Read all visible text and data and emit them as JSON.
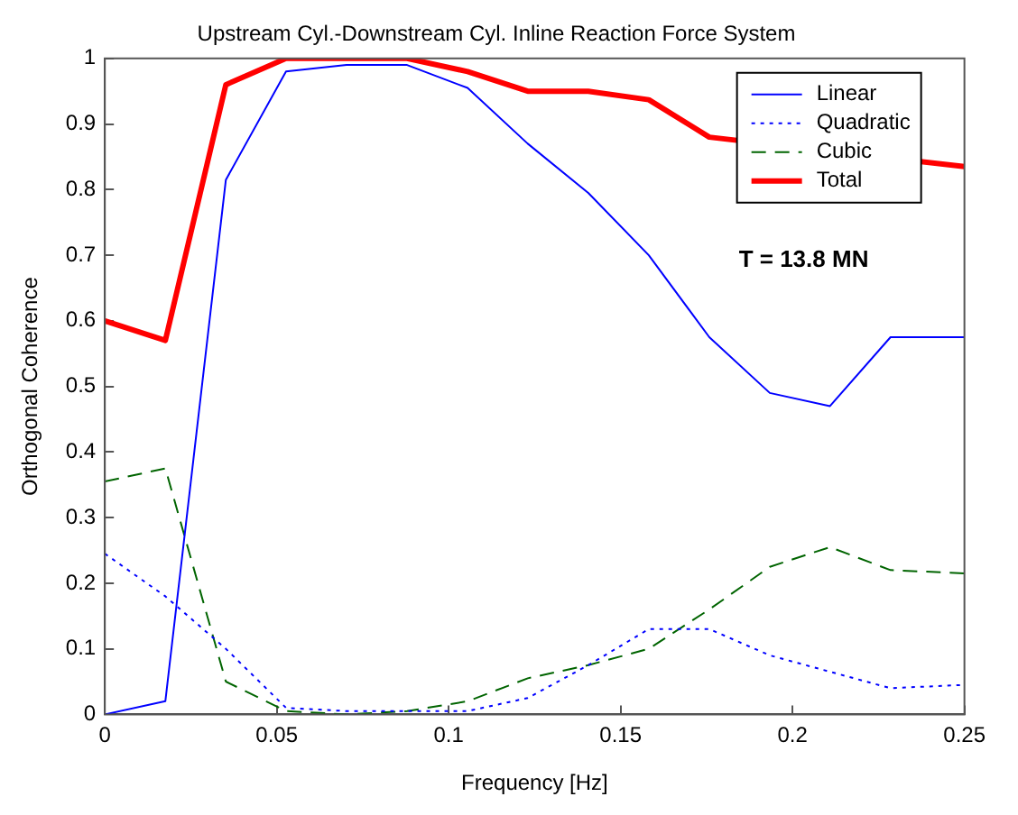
{
  "chart_data": {
    "type": "line",
    "title": "Upstream Cyl.-Downstream Cyl. Inline Reaction Force System",
    "xlabel": "Frequency [Hz]",
    "ylabel": "Orthogonal Coherence",
    "x": [
      0,
      0.0176,
      0.0352,
      0.0527,
      0.0703,
      0.0879,
      0.1055,
      0.123,
      0.1406,
      0.1582,
      0.1758,
      0.1934,
      0.2109,
      0.2285,
      0.25
    ],
    "series": [
      {
        "name": "Linear",
        "color": "#0000ff",
        "line_style": "solid",
        "values": [
          0,
          0.02,
          0.815,
          0.98,
          0.99,
          0.99,
          0.955,
          0.87,
          0.795,
          0.7,
          0.575,
          0.49,
          0.47,
          0.575,
          0.575
        ]
      },
      {
        "name": "Quadratic",
        "color": "#0000ff",
        "line_style": "dotted",
        "values": [
          0.245,
          0.18,
          0.1,
          0.01,
          0.005,
          0.005,
          0.005,
          0.025,
          0.075,
          0.13,
          0.13,
          0.09,
          0.065,
          0.04,
          0.045
        ]
      },
      {
        "name": "Cubic",
        "color": "#006400",
        "line_style": "dashed",
        "values": [
          0.355,
          0.375,
          0.05,
          0.005,
          0,
          0.005,
          0.02,
          0.055,
          0.075,
          0.1,
          0.16,
          0.225,
          0.255,
          0.22,
          0.215
        ]
      },
      {
        "name": "Total",
        "color": "#ff0000",
        "line_style": "solid",
        "values": [
          0.6,
          0.57,
          0.96,
          1,
          1,
          1,
          0.98,
          0.95,
          0.95,
          0.937,
          0.88,
          null,
          null,
          null,
          0.835
        ]
      }
    ],
    "xlim": [
      0,
      0.25
    ],
    "xticks": [
      0,
      0.05,
      0.1,
      0.15,
      0.2,
      0.25
    ],
    "ylim": [
      0,
      1
    ],
    "yticks": [
      0,
      0.1,
      0.2,
      0.3,
      0.4,
      0.5,
      0.6,
      0.7,
      0.8,
      0.9,
      1
    ],
    "grid": false,
    "legend": "top right",
    "marker": "none",
    "annotations": [
      "T = 13.8 MN"
    ]
  }
}
